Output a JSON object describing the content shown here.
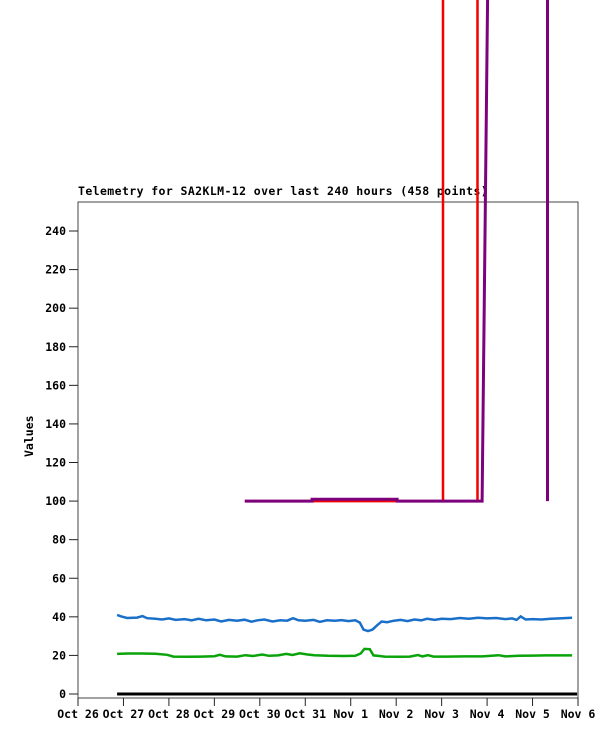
{
  "chart_data": {
    "type": "line",
    "title": "Telemetry for SA2KLM-12 over last 240 hours (458 points)",
    "ylabel": "Values",
    "xlabel": "",
    "x_tick_labels": [
      "Oct 26",
      "Oct 27",
      "Oct 28",
      "Oct 29",
      "Oct 30",
      "Oct 31",
      "Nov 1",
      "Nov 2",
      "Nov 3",
      "Nov 4",
      "Nov 5",
      "Nov 6"
    ],
    "y_ticks": [
      0,
      20,
      40,
      60,
      80,
      100,
      120,
      140,
      160,
      180,
      200,
      220,
      240
    ],
    "ylim_visible": [
      0,
      255
    ],
    "x_range_days": [
      0,
      11
    ],
    "grid": false,
    "legend": "none",
    "border_color": "#444444",
    "text_color": "#000000",
    "note": "x in days after Oct 26. Red and purple series spike off-scale (far above 255): red between Nov 3.0 and Nov 3.8, purple between Nov 3.9 and Nov 5.3; spike segments are drawn unclipped past the top of the plot box. Value 380 encodes off-scale-high.",
    "series": [
      {
        "name": "black-baseline",
        "color": "#000000",
        "width": 3,
        "points": [
          [
            0.86,
            0
          ],
          [
            10.98,
            0
          ]
        ]
      },
      {
        "name": "blue",
        "color": "#1a6fc9",
        "width": 2.5,
        "points": [
          [
            0.86,
            41
          ],
          [
            0.95,
            40.2
          ],
          [
            1.08,
            39.4
          ],
          [
            1.3,
            39.6
          ],
          [
            1.42,
            40.4
          ],
          [
            1.52,
            39.3
          ],
          [
            1.7,
            39.0
          ],
          [
            1.85,
            38.6
          ],
          [
            2.0,
            39.2
          ],
          [
            2.15,
            38.4
          ],
          [
            2.35,
            38.8
          ],
          [
            2.5,
            38.2
          ],
          [
            2.65,
            39.0
          ],
          [
            2.82,
            38.2
          ],
          [
            3.0,
            38.6
          ],
          [
            3.15,
            37.6
          ],
          [
            3.32,
            38.4
          ],
          [
            3.5,
            38.0
          ],
          [
            3.66,
            38.5
          ],
          [
            3.82,
            37.5
          ],
          [
            3.95,
            38.2
          ],
          [
            4.1,
            38.6
          ],
          [
            4.28,
            37.6
          ],
          [
            4.45,
            38.2
          ],
          [
            4.6,
            38.0
          ],
          [
            4.73,
            39.3
          ],
          [
            4.85,
            38.2
          ],
          [
            5.0,
            38.0
          ],
          [
            5.18,
            38.4
          ],
          [
            5.32,
            37.4
          ],
          [
            5.48,
            38.2
          ],
          [
            5.65,
            38.0
          ],
          [
            5.8,
            38.3
          ],
          [
            5.95,
            37.8
          ],
          [
            6.1,
            38.2
          ],
          [
            6.2,
            37.0
          ],
          [
            6.28,
            33.4
          ],
          [
            6.38,
            32.6
          ],
          [
            6.48,
            33.4
          ],
          [
            6.58,
            35.6
          ],
          [
            6.68,
            37.6
          ],
          [
            6.8,
            37.2
          ],
          [
            6.95,
            38.0
          ],
          [
            7.1,
            38.4
          ],
          [
            7.25,
            37.8
          ],
          [
            7.4,
            38.6
          ],
          [
            7.55,
            38.2
          ],
          [
            7.68,
            39.0
          ],
          [
            7.85,
            38.4
          ],
          [
            8.0,
            39.0
          ],
          [
            8.2,
            38.8
          ],
          [
            8.4,
            39.4
          ],
          [
            8.6,
            39.0
          ],
          [
            8.8,
            39.5
          ],
          [
            9.0,
            39.2
          ],
          [
            9.2,
            39.4
          ],
          [
            9.4,
            38.8
          ],
          [
            9.55,
            39.2
          ],
          [
            9.65,
            38.4
          ],
          [
            9.74,
            40.2
          ],
          [
            9.85,
            38.6
          ],
          [
            10.0,
            38.8
          ],
          [
            10.2,
            38.6
          ],
          [
            10.4,
            39.0
          ],
          [
            10.6,
            39.2
          ],
          [
            10.87,
            39.5
          ]
        ]
      },
      {
        "name": "green",
        "color": "#0aa30a",
        "width": 2.5,
        "points": [
          [
            0.86,
            20.8
          ],
          [
            1.1,
            21.0
          ],
          [
            1.4,
            21.0
          ],
          [
            1.7,
            20.9
          ],
          [
            1.96,
            20.3
          ],
          [
            2.1,
            19.4
          ],
          [
            2.4,
            19.3
          ],
          [
            2.7,
            19.4
          ],
          [
            3.0,
            19.6
          ],
          [
            3.12,
            20.3
          ],
          [
            3.25,
            19.5
          ],
          [
            3.5,
            19.4
          ],
          [
            3.68,
            20.1
          ],
          [
            3.85,
            19.7
          ],
          [
            4.05,
            20.5
          ],
          [
            4.2,
            19.8
          ],
          [
            4.4,
            20.0
          ],
          [
            4.58,
            20.8
          ],
          [
            4.72,
            20.2
          ],
          [
            4.88,
            21.1
          ],
          [
            5.05,
            20.5
          ],
          [
            5.2,
            20.1
          ],
          [
            5.5,
            19.8
          ],
          [
            5.85,
            19.7
          ],
          [
            6.1,
            19.8
          ],
          [
            6.22,
            21.0
          ],
          [
            6.3,
            23.4
          ],
          [
            6.42,
            23.2
          ],
          [
            6.5,
            20.0
          ],
          [
            6.75,
            19.4
          ],
          [
            7.05,
            19.3
          ],
          [
            7.3,
            19.4
          ],
          [
            7.48,
            20.2
          ],
          [
            7.58,
            19.5
          ],
          [
            7.7,
            20.1
          ],
          [
            7.82,
            19.4
          ],
          [
            8.1,
            19.4
          ],
          [
            8.5,
            19.5
          ],
          [
            8.9,
            19.5
          ],
          [
            9.25,
            20.1
          ],
          [
            9.4,
            19.5
          ],
          [
            9.7,
            19.8
          ],
          [
            10.0,
            19.9
          ],
          [
            10.3,
            20.0
          ],
          [
            10.87,
            20.0
          ]
        ]
      },
      {
        "name": "red",
        "color": "#f40000",
        "width": 2.5,
        "points": [
          [
            3.67,
            100
          ],
          [
            8.03,
            100
          ],
          [
            8.03,
            380
          ],
          [
            8.79,
            380
          ],
          [
            8.79,
            100
          ],
          [
            8.82,
            100
          ]
        ]
      },
      {
        "name": "purple",
        "color": "#7d007d",
        "width": 3,
        "points": [
          [
            3.67,
            100
          ],
          [
            5.15,
            100
          ],
          [
            5.15,
            101
          ],
          [
            7.02,
            101
          ],
          [
            7.02,
            100
          ],
          [
            8.89,
            100
          ],
          [
            9.02,
            380
          ],
          [
            10.33,
            380
          ],
          [
            10.33,
            100
          ]
        ]
      }
    ]
  }
}
